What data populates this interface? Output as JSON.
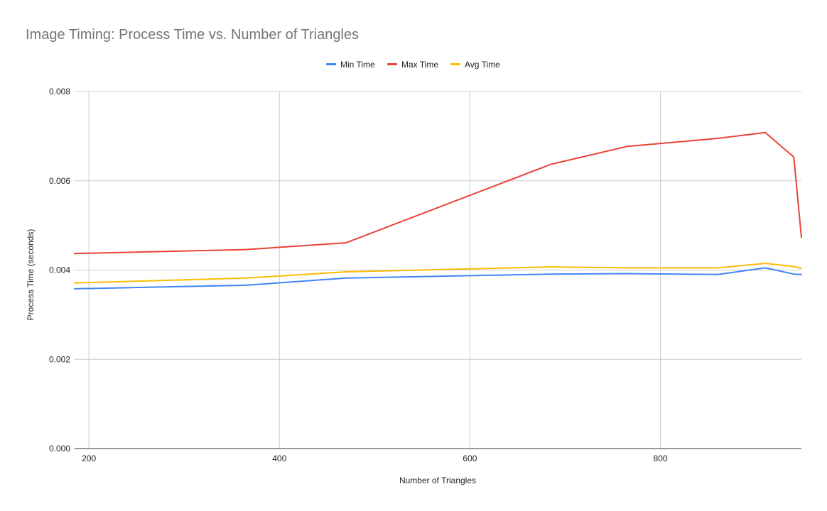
{
  "chart_data": {
    "type": "line",
    "title": "Image Timing: Process Time vs. Number of Triangles",
    "xlabel": "Number of Triangles",
    "ylabel": "Process Time (seconds)",
    "xlim": [
      185,
      948
    ],
    "ylim": [
      0,
      0.008
    ],
    "x_ticks": [
      200,
      400,
      600,
      800
    ],
    "x_tick_labels": [
      "200",
      "400",
      "600",
      "800"
    ],
    "y_ticks": [
      0,
      0.002,
      0.004,
      0.006,
      0.008
    ],
    "y_tick_labels": [
      "0.000",
      "0.002",
      "0.004",
      "0.006",
      "0.008"
    ],
    "grid": true,
    "legend_position": "top",
    "x": [
      185,
      365,
      470,
      685,
      765,
      860,
      910,
      940,
      948
    ],
    "series": [
      {
        "name": "Min Time",
        "color": "#4285f4",
        "values": [
          0.00358,
          0.00366,
          0.00382,
          0.00391,
          0.00392,
          0.0039,
          0.00405,
          0.00391,
          0.0039
        ]
      },
      {
        "name": "Max Time",
        "color": "#ea4335",
        "values": [
          0.00437,
          0.00446,
          0.00461,
          0.00637,
          0.00677,
          0.00695,
          0.00708,
          0.00653,
          0.00473
        ]
      },
      {
        "name": "Avg Time",
        "color": "#fbbc04",
        "values": [
          0.00371,
          0.00382,
          0.00396,
          0.00407,
          0.00405,
          0.00405,
          0.00415,
          0.00408,
          0.00404
        ]
      }
    ]
  }
}
